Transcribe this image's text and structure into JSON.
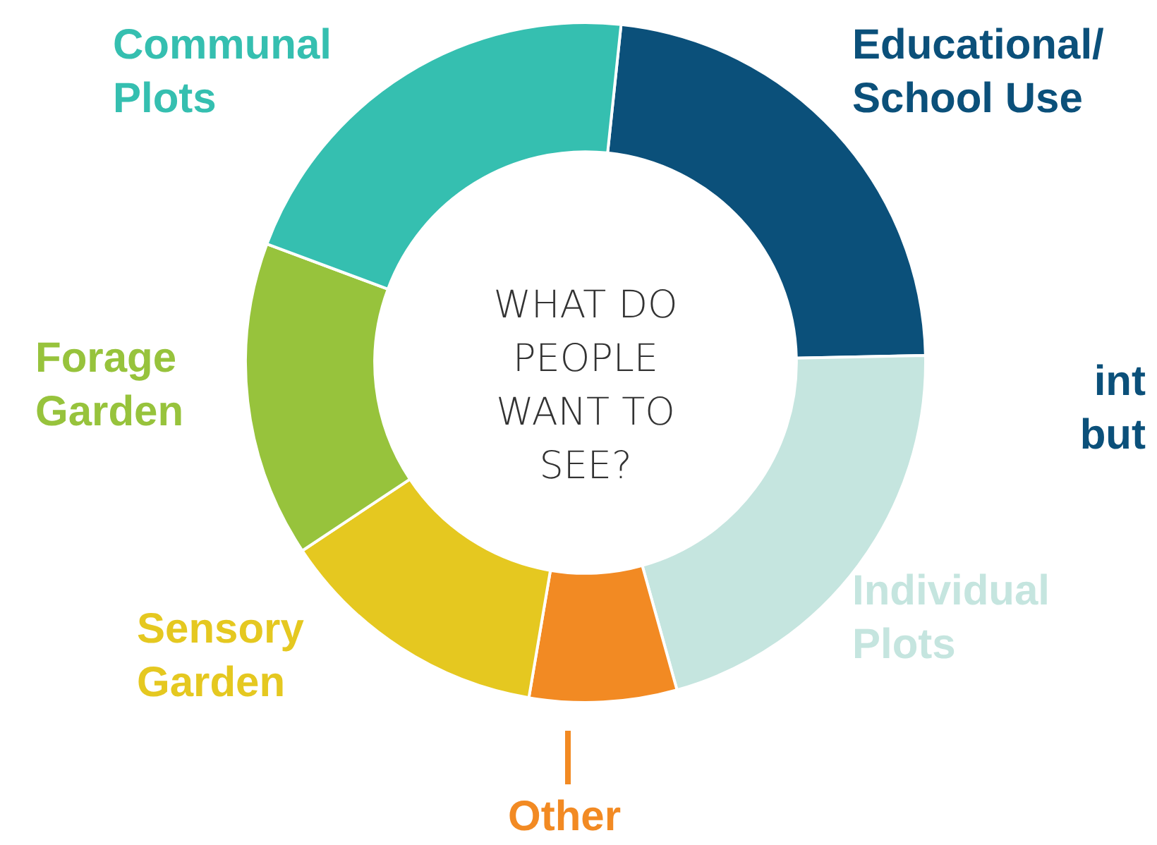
{
  "chart_data": {
    "type": "donut",
    "title": "WHAT DO PEOPLE WANT TO SEE?",
    "categories": [
      "Educational/ School Use",
      "Individual Plots",
      "Other",
      "Sensory Garden",
      "Forage Garden",
      "Communal Plots"
    ],
    "values": [
      23,
      21,
      7,
      13,
      15,
      21
    ],
    "colors": [
      "#0b507a",
      "#c5e5df",
      "#f28a23",
      "#e5c820",
      "#97c33c",
      "#35bfb0"
    ],
    "annotations": [
      "int",
      "but"
    ]
  }
}
